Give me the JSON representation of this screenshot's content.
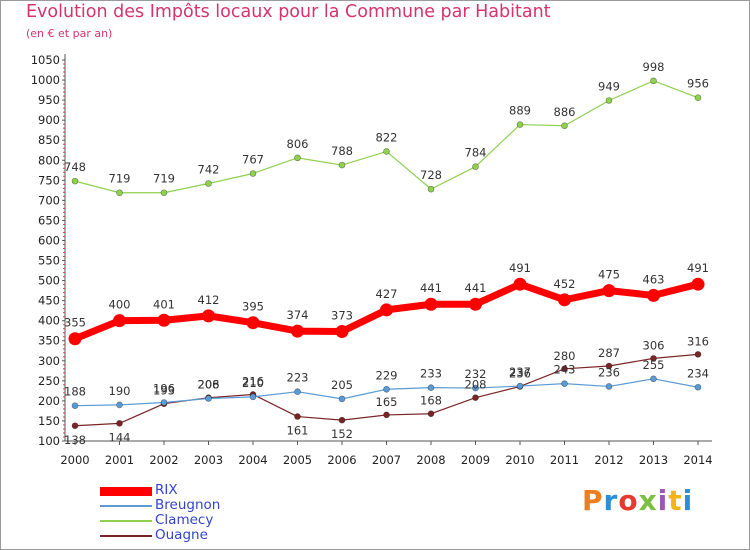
{
  "header": {
    "title": "Evolution des Impôts locaux pour la Commune par Habitant",
    "subtitle": "(en € et par an)"
  },
  "logo": {
    "text": "Proxiti",
    "colors": [
      "#ee7d1f",
      "#2a8fd6",
      "#e8392f",
      "#7cc043",
      "#9b59b6",
      "#f2b418",
      "#2a8fd6"
    ]
  },
  "chart_data": {
    "type": "line",
    "x": [
      2000,
      2001,
      2002,
      2003,
      2004,
      2005,
      2006,
      2007,
      2008,
      2009,
      2010,
      2011,
      2012,
      2013,
      2014
    ],
    "yticks": [
      100,
      150,
      200,
      250,
      300,
      350,
      400,
      450,
      500,
      550,
      600,
      650,
      700,
      750,
      800,
      850,
      900,
      950,
      1000,
      1050
    ],
    "ylim": [
      100,
      1050
    ],
    "grid": false,
    "legend_position": "bottom-left",
    "series": [
      {
        "name": "RIX",
        "color": "#ff0000",
        "values": [
          355,
          400,
          401,
          412,
          395,
          374,
          373,
          427,
          441,
          441,
          491,
          452,
          475,
          463,
          491
        ],
        "labels": [
          "355",
          "400",
          "401",
          "412",
          "395",
          "374",
          "373",
          "427",
          "441",
          "441",
          "491",
          "452",
          "475",
          "463",
          "491"
        ]
      },
      {
        "name": "Breugnon",
        "color": "#5a9bd5",
        "values": [
          188,
          190,
          196,
          206,
          210,
          223,
          205,
          229,
          233,
          232,
          237,
          243,
          236,
          255,
          234
        ],
        "labels": [
          "188",
          "190",
          "196",
          "206",
          "210",
          "223",
          "205",
          "229",
          "233",
          "232",
          "237",
          "243",
          "236",
          "255",
          "234"
        ]
      },
      {
        "name": "Clamecy",
        "color": "#8fd14f",
        "values": [
          748,
          719,
          719,
          742,
          767,
          806,
          788,
          822,
          728,
          784,
          889,
          886,
          949,
          998,
          956
        ],
        "labels": [
          "748",
          "719",
          "719",
          "742",
          "767",
          "806",
          "788",
          "822",
          "728",
          "784",
          "889",
          "886",
          "949",
          "998",
          "956"
        ]
      },
      {
        "name": "Ouagne",
        "color": "#7a2525",
        "values": [
          138,
          144,
          193,
          208,
          216,
          161,
          152,
          165,
          168,
          208,
          236,
          280,
          287,
          306,
          316
        ],
        "labels": [
          "138",
          "144",
          "193",
          "208",
          "216",
          "161",
          "152",
          "165",
          "168",
          "208",
          "236",
          "280",
          "287",
          "306",
          "316"
        ]
      }
    ]
  }
}
